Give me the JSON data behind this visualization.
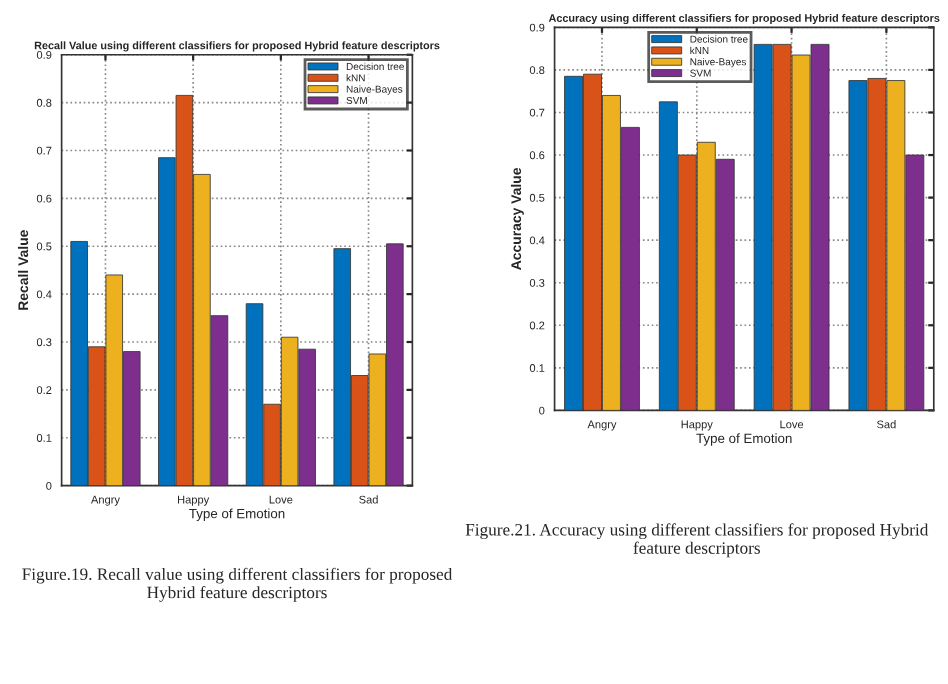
{
  "chart_data": [
    {
      "type": "bar",
      "title": "Recall Value using different classifiers for proposed Hybrid feature descriptors",
      "xlabel": "Type of Emotion",
      "ylabel": "Recall Value",
      "categories": [
        "Angry",
        "Happy",
        "Love",
        "Sad"
      ],
      "series": [
        {
          "name": "Decision tree",
          "color": "#0072bd",
          "values": [
            0.51,
            0.685,
            0.38,
            0.495
          ]
        },
        {
          "name": "kNN",
          "color": "#d95319",
          "values": [
            0.29,
            0.815,
            0.17,
            0.23
          ]
        },
        {
          "name": "Naive-Bayes",
          "color": "#edb120",
          "values": [
            0.44,
            0.65,
            0.31,
            0.275
          ]
        },
        {
          "name": "SVM",
          "color": "#7e2f8e",
          "values": [
            0.28,
            0.355,
            0.285,
            0.505
          ]
        }
      ],
      "ylim": [
        0,
        0.9
      ],
      "yticks": [
        0,
        0.1,
        0.2,
        0.3,
        0.4,
        0.5,
        0.6,
        0.7,
        0.8,
        0.9
      ],
      "grid": true,
      "legend": "top right",
      "annotations": [
        "Figure.19. Recall value using different classifiers for proposed Hybrid feature descriptors"
      ]
    },
    {
      "type": "bar",
      "title": "Accuracy using different classifiers for proposed Hybrid feature descriptors",
      "xlabel": "Type of Emotion",
      "ylabel": "Accuracy Value",
      "categories": [
        "Angry",
        "Happy",
        "Love",
        "Sad"
      ],
      "series": [
        {
          "name": "Decision tree",
          "color": "#0072bd",
          "values": [
            0.785,
            0.725,
            0.86,
            0.775
          ]
        },
        {
          "name": "kNN",
          "color": "#d95319",
          "values": [
            0.79,
            0.6,
            0.86,
            0.78
          ]
        },
        {
          "name": "Naive-Bayes",
          "color": "#edb120",
          "values": [
            0.74,
            0.63,
            0.835,
            0.775
          ]
        },
        {
          "name": "SVM",
          "color": "#7e2f8e",
          "values": [
            0.665,
            0.59,
            0.86,
            0.6
          ]
        }
      ],
      "ylim": [
        0,
        0.9
      ],
      "yticks": [
        0,
        0.1,
        0.2,
        0.3,
        0.4,
        0.5,
        0.6,
        0.7,
        0.8,
        0.9
      ],
      "grid": true,
      "legend": "top left",
      "annotations": [
        "Figure.21. Accuracy using different classifiers for proposed Hybrid feature descriptors"
      ]
    }
  ]
}
